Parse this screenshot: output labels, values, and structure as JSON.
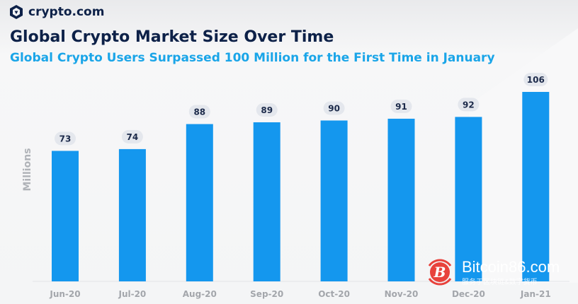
{
  "brand": {
    "name": "crypto.com",
    "icon": "crypto-com-lion-shield-logo"
  },
  "chart_data": {
    "type": "bar",
    "title": "Global Crypto Market Size Over Time",
    "subtitle": "Global Crypto Users Surpassed 100 Million for the First Time in January",
    "xlabel": "",
    "ylabel": "Millions",
    "categories": [
      "Jun-20",
      "Jul-20",
      "Aug-20",
      "Sep-20",
      "Oct-20",
      "Nov-20",
      "Dec-20",
      "Jan-21"
    ],
    "values": [
      73,
      74,
      88,
      89,
      90,
      91,
      92,
      106
    ],
    "ylim": [
      0,
      106
    ],
    "grid": false,
    "data_labels": true,
    "colors": {
      "bar": "#1497ee",
      "label_pill": "#e4e7ed",
      "label_text": "#1c2a4a",
      "title": "#0d2148",
      "subtitle": "#1aa5e8",
      "axis_text": "#a3a6ab"
    }
  },
  "watermark": {
    "main": "Bitcoin86.com",
    "sub": "服务于区块链&数字货币"
  }
}
